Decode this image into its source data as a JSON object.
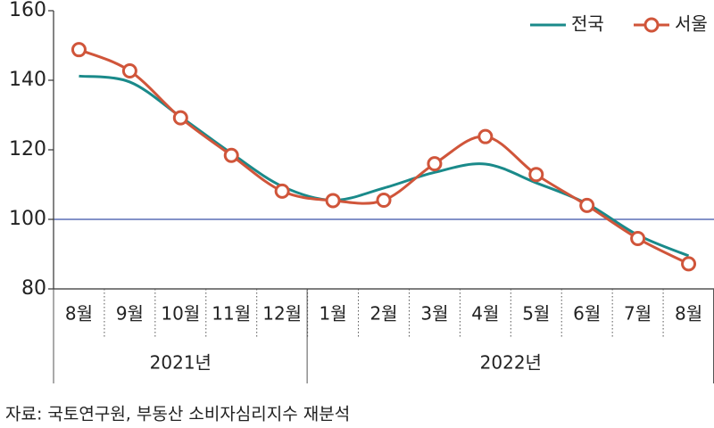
{
  "chart_data": {
    "type": "line",
    "categories": [
      "8월",
      "9월",
      "10월",
      "11월",
      "12월",
      "1월",
      "2월",
      "3월",
      "4월",
      "5월",
      "6월",
      "7월",
      "8월"
    ],
    "x_groups": [
      {
        "label": "2021년",
        "span": 5
      },
      {
        "label": "2022년",
        "span": 8
      }
    ],
    "series": [
      {
        "name": "전국",
        "color": "#1a8a8a",
        "marker": false,
        "values": [
          141.2,
          139.5,
          129.5,
          119,
          109.5,
          105.5,
          109,
          113.5,
          115.9,
          110.5,
          104.5,
          95.5,
          89.5
        ]
      },
      {
        "name": "서울",
        "color": "#d0553a",
        "marker": true,
        "values": [
          148.8,
          142.7,
          129.2,
          118.4,
          108.1,
          105.4,
          105.5,
          116,
          123.8,
          112.9,
          104,
          94.5,
          87.2
        ]
      }
    ],
    "reference_line": {
      "value": 100,
      "color": "#5b6fb5"
    },
    "ylim": [
      80,
      160
    ],
    "yticks": [
      80,
      100,
      120,
      140,
      160
    ],
    "legend": "top-right",
    "source": "자료: 국토연구원, 부동산 소비자심리지수 재분석"
  }
}
